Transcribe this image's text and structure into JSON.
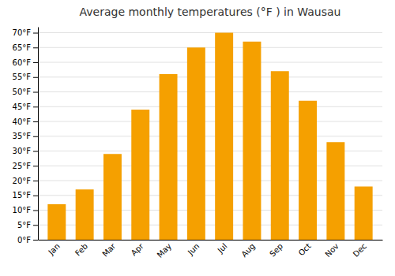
{
  "chart_data": {
    "type": "bar",
    "title": "Average monthly temperatures (°F ) in Wausau",
    "categories": [
      "Jan",
      "Feb",
      "Mar",
      "Apr",
      "May",
      "Jun",
      "Jul",
      "Aug",
      "Sep",
      "Oct",
      "Nov",
      "Dec"
    ],
    "values": [
      12,
      17,
      29,
      44,
      56,
      65,
      70,
      67,
      57,
      47,
      33,
      18
    ],
    "color": "#F5A000",
    "ylim": [
      0,
      72
    ],
    "yticks": [
      {
        "value": 0,
        "label": "0°F"
      },
      {
        "value": 5,
        "label": "5°F"
      },
      {
        "value": 10,
        "label": "10°F"
      },
      {
        "value": 15,
        "label": "15°F"
      },
      {
        "value": 20,
        "label": "20°F"
      },
      {
        "value": 25,
        "label": "25°F"
      },
      {
        "value": 30,
        "label": "30°F"
      },
      {
        "value": 35,
        "label": "35°F"
      },
      {
        "value": 40,
        "label": "40°F"
      },
      {
        "value": 45,
        "label": "45°F"
      },
      {
        "value": 50,
        "label": "50°F"
      },
      {
        "value": 55,
        "label": "55°F"
      },
      {
        "value": 60,
        "label": "60°F"
      },
      {
        "value": 65,
        "label": "65°F"
      },
      {
        "value": 70,
        "label": "70°F"
      }
    ],
    "grid": true
  }
}
